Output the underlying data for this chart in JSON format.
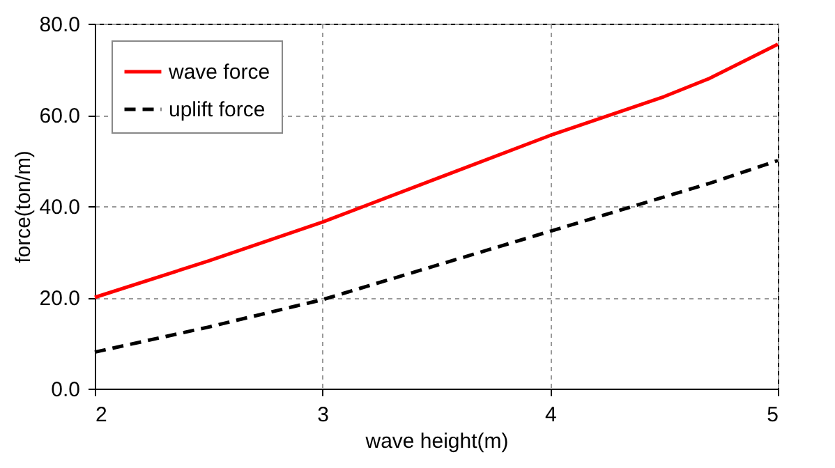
{
  "chart_data": {
    "type": "line",
    "xlabel": "wave height(m)",
    "ylabel": "force(ton/m)",
    "x": [
      2,
      2.5,
      3,
      3.5,
      4,
      4.5,
      4.7,
      5
    ],
    "series": [
      {
        "name": "wave force",
        "color": "#ff0000",
        "line_style": "solid",
        "values": [
          20,
          28,
          36.5,
          46,
          55.5,
          64,
          68,
          75.5
        ]
      },
      {
        "name": "uplift force",
        "color": "#000000",
        "line_style": "dashed",
        "values": [
          8,
          13.5,
          19.5,
          27,
          34.5,
          42,
          45,
          50
        ]
      }
    ],
    "xlim": [
      2,
      5
    ],
    "xticks": [
      2,
      3,
      4,
      5
    ],
    "ylim": [
      0,
      80
    ],
    "yticks": [
      {
        "value": 0,
        "label": "0.0"
      },
      {
        "value": 20,
        "label": "20.0"
      },
      {
        "value": 40,
        "label": "40.0"
      },
      {
        "value": 60,
        "label": "60.0"
      },
      {
        "value": 80,
        "label": "80.0"
      }
    ],
    "grid": true,
    "legend": "top left",
    "marker": "none"
  }
}
